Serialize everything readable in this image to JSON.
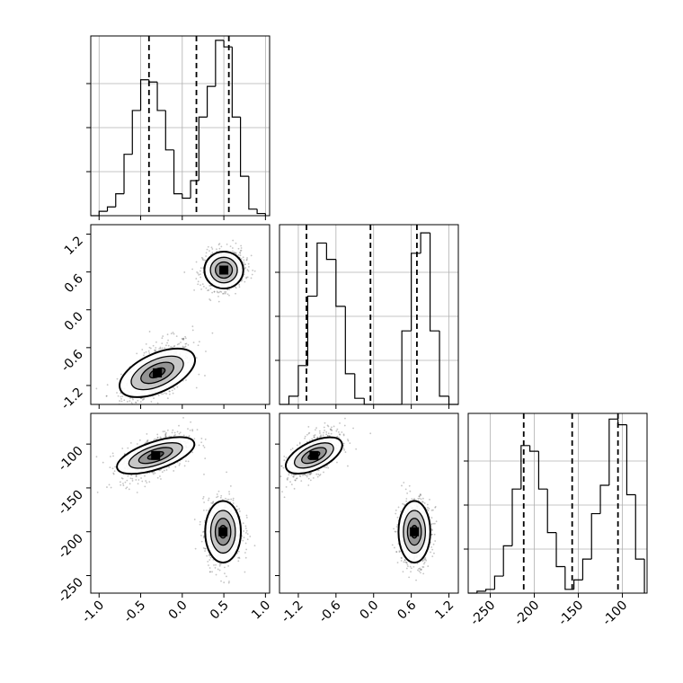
{
  "chart_data": [
    {
      "panel": "hist-x",
      "type": "histogram",
      "xlim": [
        -1.1,
        1.05
      ],
      "bin_width": 0.1,
      "x": [
        -1.05,
        -0.95,
        -0.85,
        -0.75,
        -0.65,
        -0.55,
        -0.45,
        -0.35,
        -0.25,
        -0.15,
        -0.05,
        0.05,
        0.15,
        0.25,
        0.35,
        0.45,
        0.55,
        0.65,
        0.75,
        0.85,
        0.95
      ],
      "counts": [
        0,
        2,
        4,
        10,
        28,
        48,
        62,
        61,
        48,
        30,
        10,
        8,
        16,
        45,
        59,
        80,
        77,
        45,
        18,
        3,
        1
      ],
      "ylim": [
        0,
        82
      ],
      "quantiles": [
        -0.4,
        0.17,
        0.56
      ],
      "grid": true
    },
    {
      "panel": "hist-y",
      "type": "histogram",
      "xlim": [
        -1.5,
        1.35
      ],
      "bin_width": 0.15,
      "x": [
        -1.425,
        -1.275,
        -1.125,
        -0.975,
        -0.825,
        -0.675,
        -0.525,
        -0.375,
        -0.225,
        -0.075,
        0.075,
        0.225,
        0.375,
        0.525,
        0.675,
        0.825,
        0.975,
        1.125,
        1.275
      ],
      "counts": [
        0,
        4,
        19,
        53,
        79,
        71,
        48,
        15,
        3,
        0,
        0,
        0,
        0,
        36,
        74,
        84,
        36,
        4,
        0
      ],
      "ylim": [
        0,
        88
      ],
      "quantiles": [
        -1.07,
        -0.05,
        0.69
      ],
      "grid": true
    },
    {
      "panel": "hist-z",
      "type": "histogram",
      "xlim": [
        -275,
        -72
      ],
      "bin_width": 10,
      "x": [
        -270,
        -260,
        -250,
        -240,
        -230,
        -220,
        -210,
        -200,
        -190,
        -180,
        -170,
        -160,
        -150,
        -140,
        -130,
        -120,
        -110,
        -100,
        -90,
        -80
      ],
      "counts": [
        0,
        1,
        2,
        9,
        25,
        55,
        78,
        75,
        55,
        32,
        14,
        2,
        7,
        18,
        42,
        57,
        92,
        89,
        52,
        18
      ],
      "ylim": [
        0,
        95
      ],
      "quantiles": [
        -212,
        -157,
        -105
      ],
      "grid": true
    },
    {
      "panel": "scatter-x-y",
      "type": "scatter",
      "xlim": [
        -1.1,
        1.05
      ],
      "ylim": [
        -1.5,
        1.35
      ],
      "clusters": [
        {
          "cx": -0.3,
          "cy": -1.0,
          "sx": 0.2,
          "sy": 0.25,
          "rho": 0.55
        },
        {
          "cx": 0.5,
          "cy": 0.63,
          "sx": 0.12,
          "sy": 0.15,
          "rho": 0.1
        }
      ]
    },
    {
      "panel": "scatter-x-z",
      "type": "scatter",
      "xlim": [
        -1.1,
        1.05
      ],
      "ylim": [
        -270,
        -65
      ],
      "clusters": [
        {
          "cx": -0.32,
          "cy": -113,
          "sx": 0.2,
          "sy": 13,
          "rho": 0.55
        },
        {
          "cx": 0.49,
          "cy": -200,
          "sx": 0.11,
          "sy": 18,
          "rho": 0.05
        }
      ]
    },
    {
      "panel": "scatter-y-z",
      "type": "scatter",
      "xlim": [
        -1.5,
        1.35
      ],
      "ylim": [
        -270,
        -65
      ],
      "clusters": [
        {
          "cx": -0.95,
          "cy": -113,
          "sx": 0.2,
          "sy": 13,
          "rho": 0.6
        },
        {
          "cx": 0.65,
          "cy": -200,
          "sx": 0.13,
          "sy": 18,
          "rho": 0.05
        }
      ]
    }
  ],
  "ticks": {
    "x": [
      "-1.0",
      "-0.5",
      "0.0",
      "0.5",
      "1.0"
    ],
    "x_values": [
      -1.0,
      -0.5,
      0.0,
      0.5,
      1.0
    ],
    "y": [
      "-1.2",
      "-0.6",
      "0.0",
      "0.6",
      "1.2"
    ],
    "y_values": [
      -1.2,
      -0.6,
      0.0,
      0.6,
      1.2
    ],
    "z": [
      "-250",
      "-200",
      "-150",
      "-100"
    ],
    "z_values": [
      -250,
      -200,
      -150,
      -100
    ]
  },
  "colors": {
    "line": "#000000",
    "grid": "#b0b0b0",
    "points": "#555555",
    "contour_fill": [
      "#bdbdbd",
      "#8a8a8a",
      "#4a4a4a",
      "#000000"
    ]
  }
}
